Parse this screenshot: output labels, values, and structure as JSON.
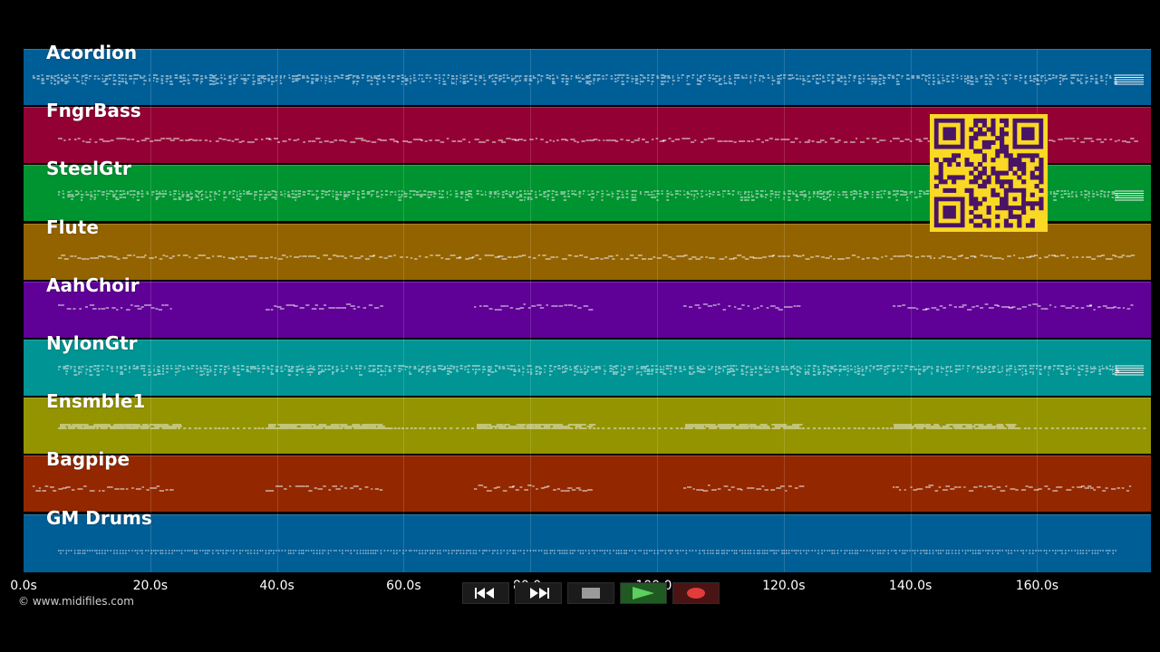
{
  "tracks": [
    {
      "name": "Acordion",
      "color": "#005e97",
      "pattern": "dense"
    },
    {
      "name": "FngrBass",
      "color": "#930033",
      "pattern": "line"
    },
    {
      "name": "SteelGtr",
      "color": "#009430",
      "pattern": "dense"
    },
    {
      "name": "Flute",
      "color": "#936300",
      "pattern": "line"
    },
    {
      "name": "AahChoir",
      "color": "#5f0096",
      "pattern": "sections"
    },
    {
      "name": "NylonGtr",
      "color": "#009494",
      "pattern": "dense"
    },
    {
      "name": "Ensmble1",
      "color": "#949400",
      "pattern": "blocks"
    },
    {
      "name": "Bagpipe",
      "color": "#932800",
      "pattern": "sections"
    },
    {
      "name": "GM Drums",
      "color": "#005e97",
      "pattern": "drums"
    }
  ],
  "time_axis": {
    "ticks": [
      "0.0s",
      "20.0s",
      "40.0s",
      "60.0s",
      "80.0s",
      "100.0s",
      "120.0s",
      "140.0s",
      "160.0s"
    ],
    "max_seconds": 178
  },
  "copyright": "© www.midifiles.com",
  "transport": {
    "rewind_icon": "rewind-icon",
    "fast_forward_icon": "fast-forward-icon",
    "stop_icon": "stop-icon",
    "play_icon": "play-icon",
    "record_icon": "record-icon",
    "play_color": "#5ccf5c",
    "record_color": "#e43b3b"
  },
  "qr_code": {
    "color": "#f9d923",
    "module_color": "#4a1466"
  }
}
